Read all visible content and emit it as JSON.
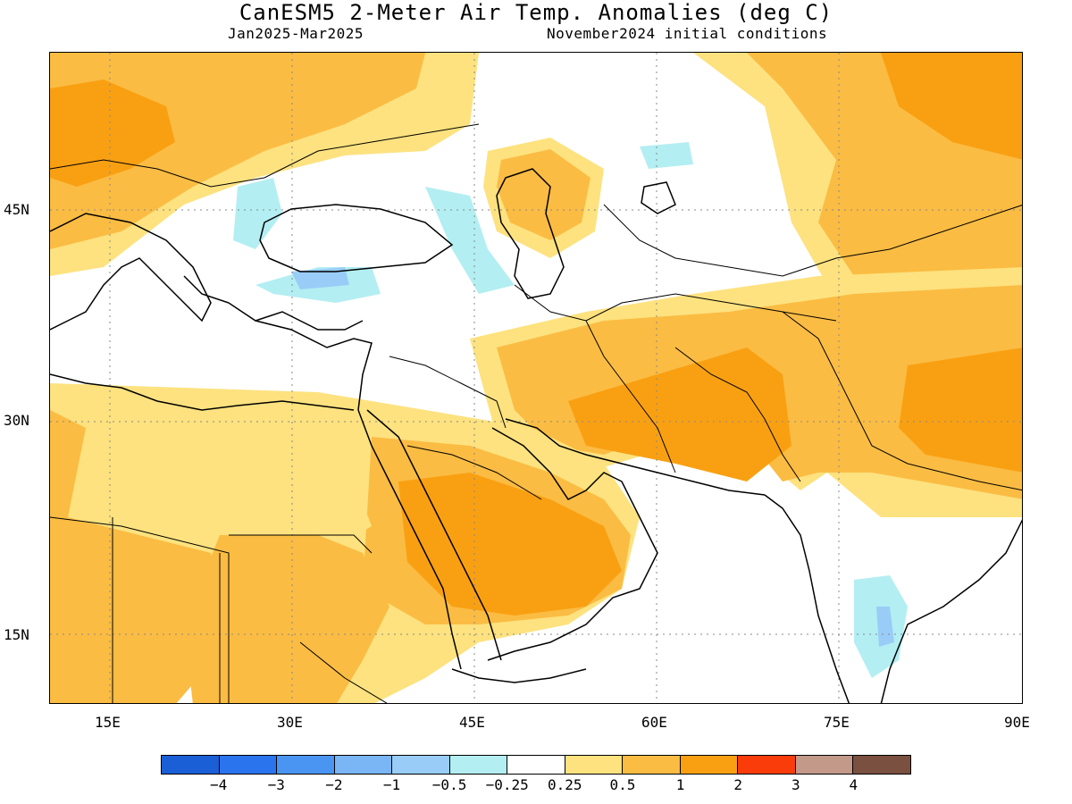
{
  "header": {
    "title": "CanESM5 2-Meter Air Temp. Anomalies (deg C)",
    "period": "Jan2025-Mar2025",
    "init": "November2024 initial conditions"
  },
  "axes": {
    "lat_labels": [
      "45N",
      "30N",
      "15N"
    ],
    "lon_labels": [
      "15E",
      "30E",
      "45E",
      "60E",
      "75E",
      "90E"
    ]
  },
  "colorbar": {
    "colors": [
      "#1a5fd6",
      "#2a74ee",
      "#4b95f2",
      "#7ab6f5",
      "#99cdf7",
      "#b3eef2",
      "#ffffff",
      "#fde27f",
      "#fbbc43",
      "#f9a012",
      "#fa3c0a",
      "#c39a8a",
      "#7a5040"
    ],
    "labels": [
      "−4",
      "−3",
      "−2",
      "−1",
      "−0.5",
      "−0.25",
      "0.25",
      "0.5",
      "1",
      "2",
      "3",
      "4"
    ]
  },
  "palette": {
    "light_yellow": "#fde27f",
    "light_orange": "#fbbc43",
    "orange": "#f9a012",
    "light_cyan": "#b3eef2",
    "light_blue": "#99cdf7",
    "mid_blue": "#7ab6f5"
  }
}
